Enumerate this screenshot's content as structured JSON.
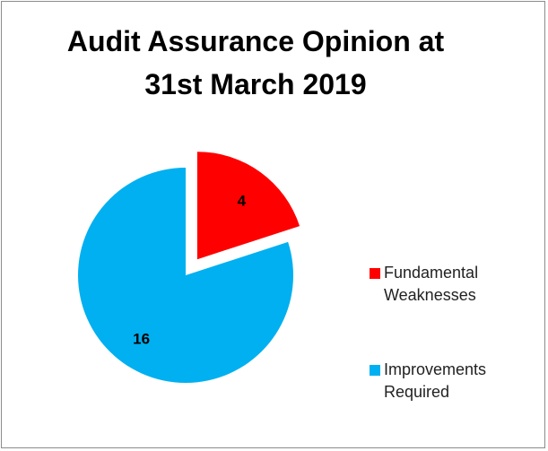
{
  "chart_data": {
    "type": "pie",
    "title": "Audit Assurance Opinion at 31st March 2019",
    "categories": [
      "Fundamental Weaknesses",
      "Improvements Required"
    ],
    "values": [
      4,
      16
    ],
    "colors": [
      "#ff0000",
      "#00b0f0"
    ],
    "explode": [
      true,
      false
    ],
    "legend": "right"
  }
}
